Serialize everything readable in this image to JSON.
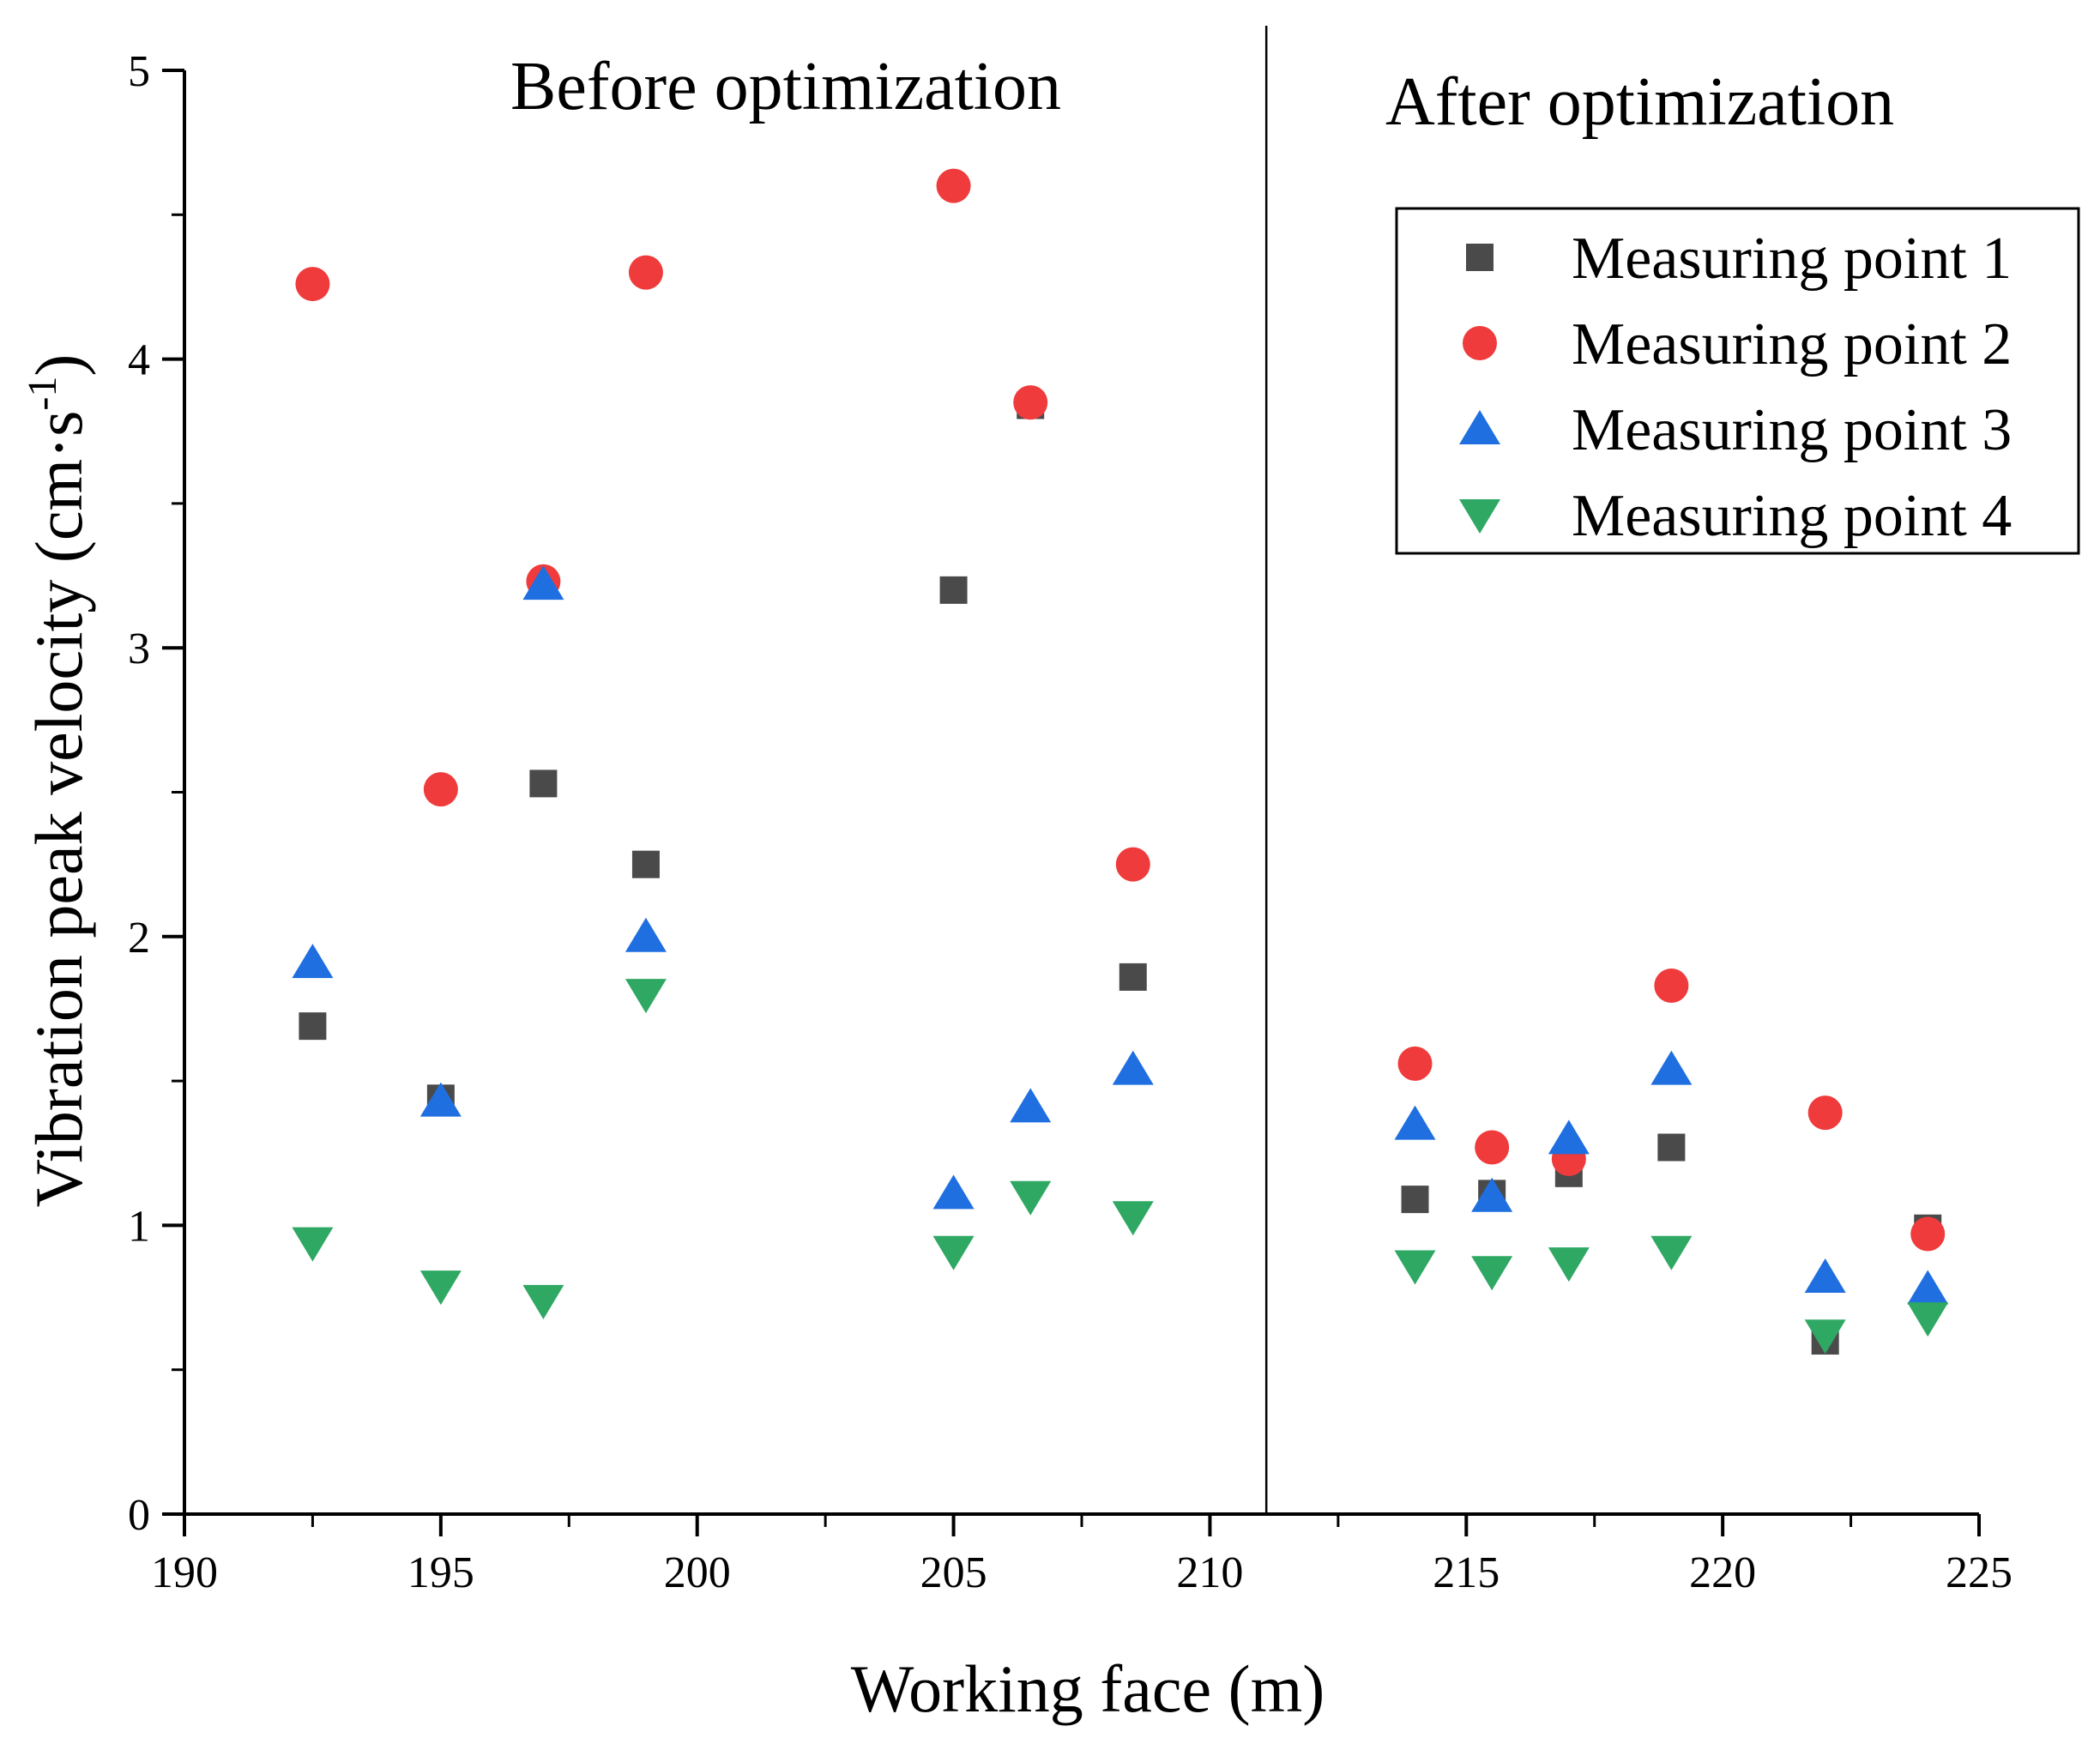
{
  "chart_data": {
    "type": "scatter",
    "title": "",
    "xlabel": "Working face (m)",
    "ylabel": "Vibration peak velocity (cm·s",
    "ylabel_sup": "-1",
    "ylabel_close": ")",
    "xlim": [
      190,
      225
    ],
    "ylim": [
      0,
      5
    ],
    "x_ticks": [
      190,
      195,
      200,
      205,
      210,
      215,
      220,
      225
    ],
    "x_tick_labels": [
      "190",
      "195",
      "200",
      "205",
      "210",
      "215",
      "220",
      "225"
    ],
    "y_ticks": [
      0,
      1,
      2,
      3,
      4,
      5
    ],
    "y_tick_labels": [
      "0",
      "1",
      "2",
      "3",
      "4",
      "5"
    ],
    "divider_x": 211.1,
    "annotations": {
      "before": "Before optimization",
      "after": "After optimization"
    },
    "legend_position": "top-right",
    "series": [
      {
        "name": "Measuring point 1",
        "marker": "square",
        "color": "#4a4a4a",
        "x": [
          192.5,
          195,
          197,
          199,
          205,
          206.5,
          208.5,
          214,
          215.5,
          217,
          219,
          222,
          224
        ],
        "y": [
          1.69,
          1.44,
          2.53,
          2.25,
          3.2,
          3.84,
          1.86,
          1.09,
          1.11,
          1.18,
          1.27,
          0.6,
          0.99
        ]
      },
      {
        "name": "Measuring point 2",
        "marker": "circle",
        "color": "#ef3b3b",
        "x": [
          192.5,
          195,
          197,
          199,
          205,
          206.5,
          208.5,
          214,
          215.5,
          217,
          219,
          222,
          224
        ],
        "y": [
          4.26,
          2.51,
          3.23,
          4.3,
          4.6,
          3.85,
          2.25,
          1.56,
          1.27,
          1.23,
          1.83,
          1.39,
          0.97
        ]
      },
      {
        "name": "Measuring point 3",
        "marker": "triangle-up",
        "color": "#1f6fe0",
        "x": [
          192.5,
          195,
          197,
          199,
          205,
          206.5,
          208.5,
          214,
          215.5,
          217,
          219,
          222,
          224
        ],
        "y": [
          1.91,
          1.43,
          3.22,
          2.0,
          1.11,
          1.41,
          1.54,
          1.35,
          1.1,
          1.3,
          1.54,
          0.82,
          0.78
        ]
      },
      {
        "name": "Measuring point 4",
        "marker": "triangle-down",
        "color": "#2ea863",
        "x": [
          192.5,
          195,
          197,
          199,
          205,
          206.5,
          208.5,
          214,
          215.5,
          217,
          219,
          222,
          224
        ],
        "y": [
          0.94,
          0.79,
          0.74,
          1.8,
          0.91,
          1.1,
          1.03,
          0.86,
          0.84,
          0.87,
          0.91,
          0.62,
          0.68
        ]
      }
    ]
  }
}
